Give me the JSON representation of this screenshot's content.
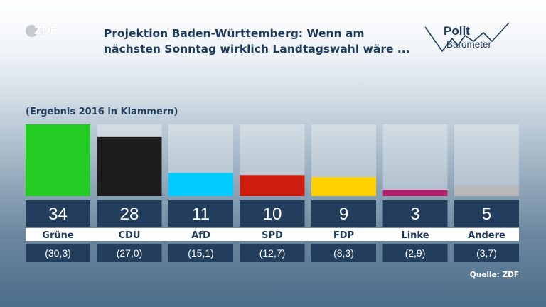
{
  "title": "Projektion Baden-Württemberg: Wenn am nächsten Sonntag wirklich Landtagswahl wäre ...",
  "subtitle": "(Ergebnis 2016 in Klammern)",
  "source": "Quelle: ZDF",
  "logos": {
    "broadcaster": "ZDF",
    "program_line1": "Polit",
    "program_line2": "Barometer"
  },
  "chart_data": {
    "type": "bar",
    "title": "Projektion Baden-Württemberg: Wenn am nächsten Sonntag wirklich Landtagswahl wäre ...",
    "subtitle": "(Ergebnis 2016 in Klammern)",
    "categories": [
      "Grüne",
      "CDU",
      "AfD",
      "SPD",
      "FDP",
      "Linke",
      "Andere"
    ],
    "series": [
      {
        "values": [
          34,
          28,
          11,
          10,
          9,
          3,
          5
        ]
      }
    ],
    "previous_result_labels": [
      "(30,3)",
      "(27,0)",
      "(15,1)",
      "(12,7)",
      "(8,3)",
      "(2,9)",
      "(3,7)"
    ],
    "colors": [
      "#22cc22",
      "#1c1c1c",
      "#00ccff",
      "#cc1d0e",
      "#ffd100",
      "#b0206a",
      "#b9b9b9"
    ],
    "ylim": [
      0,
      34
    ],
    "grid": false,
    "legend": "none"
  }
}
